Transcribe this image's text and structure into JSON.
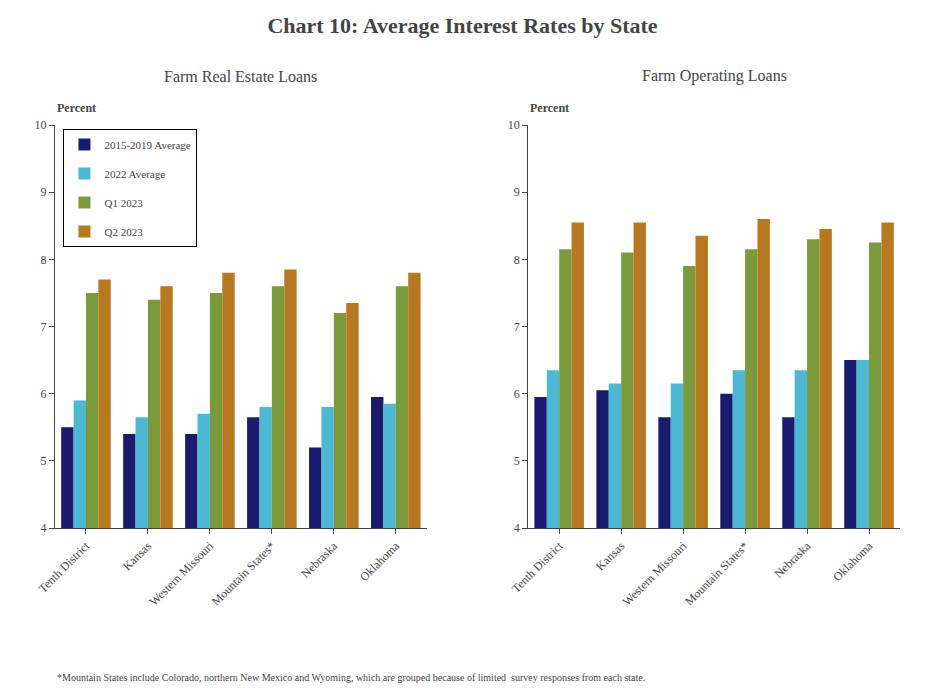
{
  "title": "Chart 10: Average Interest Rates by State",
  "annotations": [
    "*Mountain States include Colorado, northern New Mexico and Wyoming, which are grouped because of limited  survey responses from each state."
  ],
  "chart_data": [
    {
      "type": "bar",
      "subtitle": "Farm Real Estate Loans",
      "ylabel": "Percent",
      "categories": [
        "Tenth District",
        "Kansas",
        "Western Missouri",
        "Mountain States*",
        "Nebraska",
        "Oklahoma"
      ],
      "series": [
        {
          "name": "2015-2019 Average",
          "color": "#1a1a6e",
          "values": [
            5.5,
            5.4,
            5.4,
            5.65,
            5.2,
            5.95
          ]
        },
        {
          "name": "2022 Average",
          "color": "#4db8d4",
          "values": [
            5.9,
            5.65,
            5.7,
            5.8,
            5.8,
            5.85
          ]
        },
        {
          "name": "Q1 2023",
          "color": "#7a9a3c",
          "values": [
            7.5,
            7.4,
            7.5,
            7.6,
            7.2,
            7.6
          ]
        },
        {
          "name": "Q2 2023",
          "color": "#b87820",
          "values": [
            7.7,
            7.6,
            7.8,
            7.85,
            7.35,
            7.8
          ]
        }
      ],
      "ylim": [
        4,
        10
      ],
      "yticks": [
        4,
        5,
        6,
        7,
        8,
        9,
        10
      ],
      "grid": false,
      "legend": "upper left"
    },
    {
      "type": "bar",
      "subtitle": "Farm Operating Loans",
      "ylabel": "Percent",
      "categories": [
        "Tenth District",
        "Kansas",
        "Western Missouri",
        "Mountain States*",
        "Nebraska",
        "Oklahoma"
      ],
      "series": [
        {
          "name": "2015-2019 Average",
          "color": "#1a1a6e",
          "values": [
            5.95,
            6.05,
            5.65,
            6.0,
            5.65,
            6.5
          ]
        },
        {
          "name": "2022 Average",
          "color": "#4db8d4",
          "values": [
            6.35,
            6.15,
            6.15,
            6.35,
            6.35,
            6.5
          ]
        },
        {
          "name": "Q1 2023",
          "color": "#7a9a3c",
          "values": [
            8.15,
            8.1,
            7.9,
            8.15,
            8.3,
            8.25
          ]
        },
        {
          "name": "Q2 2023",
          "color": "#b87820",
          "values": [
            8.55,
            8.55,
            8.35,
            8.6,
            8.45,
            8.55
          ]
        }
      ],
      "ylim": [
        4,
        10
      ],
      "yticks": [
        4,
        5,
        6,
        7,
        8,
        9,
        10
      ],
      "grid": false
    }
  ]
}
